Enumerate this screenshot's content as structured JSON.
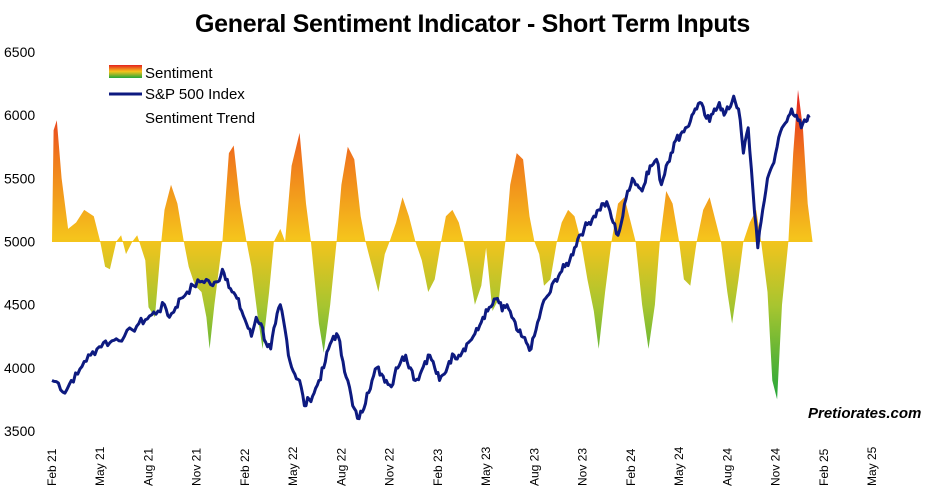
{
  "chart_data": {
    "type": "area",
    "title": "General Sentiment Indicator - Short Term Inputs",
    "xlabel": "",
    "ylabel": "",
    "ylim": [
      3500,
      6500
    ],
    "yticks": [
      "6500",
      "6000",
      "5500",
      "5000",
      "4500",
      "4000",
      "3500"
    ],
    "xticks": [
      "Feb 21",
      "May 21",
      "Aug 21",
      "Nov 21",
      "Feb 22",
      "May 22",
      "Aug 22",
      "Nov 22",
      "Feb 23",
      "May 23",
      "Aug 23",
      "Nov 23",
      "Feb 24",
      "May 24",
      "Aug 24",
      "Nov 24",
      "Feb 25",
      "May 25"
    ],
    "grid": false,
    "legend_position": "top-left",
    "baseline": 5000,
    "legend": [
      {
        "name": "Sentiment",
        "symbol": "gradient-bar"
      },
      {
        "name": "S&P 500 Index",
        "symbol": "line",
        "color": "#0d1a80"
      },
      {
        "name": "Sentiment Trend",
        "symbol": "none"
      }
    ],
    "series": [
      {
        "name": "Sentiment",
        "kind": "area-from-baseline",
        "colors": {
          "high": "#e5201f",
          "mid": "#f5c41c",
          "low": "#22a63a"
        },
        "points": [
          [
            0,
            5000
          ],
          [
            0.1,
            5880
          ],
          [
            0.3,
            5960
          ],
          [
            0.6,
            5500
          ],
          [
            1,
            5100
          ],
          [
            1.5,
            5150
          ],
          [
            2,
            5250
          ],
          [
            2.6,
            5200
          ],
          [
            3,
            5000
          ],
          [
            3.3,
            4800
          ],
          [
            3.6,
            4780
          ],
          [
            4,
            5000
          ],
          [
            4.3,
            5050
          ],
          [
            4.6,
            4900
          ],
          [
            5,
            5000
          ],
          [
            5.3,
            5050
          ],
          [
            5.8,
            4850
          ],
          [
            6,
            4480
          ],
          [
            6.4,
            4400
          ],
          [
            6.8,
            5000
          ],
          [
            7,
            5250
          ],
          [
            7.4,
            5450
          ],
          [
            7.8,
            5300
          ],
          [
            8.2,
            5000
          ],
          [
            8.5,
            4800
          ],
          [
            8.9,
            4650
          ],
          [
            9.3,
            4600
          ],
          [
            9.6,
            4400
          ],
          [
            9.8,
            4150
          ],
          [
            10.1,
            4500
          ],
          [
            10.6,
            5000
          ],
          [
            11,
            5700
          ],
          [
            11.3,
            5760
          ],
          [
            11.7,
            5300
          ],
          [
            12.1,
            5000
          ],
          [
            12.4,
            4800
          ],
          [
            12.8,
            4400
          ],
          [
            13.1,
            4150
          ],
          [
            13.5,
            4600
          ],
          [
            13.8,
            5000
          ],
          [
            14.2,
            5100
          ],
          [
            14.5,
            5000
          ],
          [
            14.9,
            5600
          ],
          [
            15.4,
            5860
          ],
          [
            15.8,
            5300
          ],
          [
            16.1,
            5000
          ],
          [
            16.6,
            4350
          ],
          [
            16.9,
            4120
          ],
          [
            17.3,
            4500
          ],
          [
            17.7,
            5000
          ],
          [
            18,
            5450
          ],
          [
            18.4,
            5750
          ],
          [
            18.8,
            5650
          ],
          [
            19.2,
            5200
          ],
          [
            19.5,
            5000
          ],
          [
            19.9,
            4800
          ],
          [
            20.3,
            4600
          ],
          [
            20.7,
            4900
          ],
          [
            21,
            5000
          ],
          [
            21.4,
            5150
          ],
          [
            21.8,
            5350
          ],
          [
            22.2,
            5200
          ],
          [
            22.6,
            5000
          ],
          [
            23,
            4850
          ],
          [
            23.4,
            4600
          ],
          [
            23.8,
            4700
          ],
          [
            24.2,
            5000
          ],
          [
            24.5,
            5200
          ],
          [
            24.9,
            5250
          ],
          [
            25.3,
            5150
          ],
          [
            25.6,
            5000
          ],
          [
            25.9,
            4800
          ],
          [
            26.3,
            4500
          ],
          [
            26.7,
            4650
          ],
          [
            27,
            4950
          ],
          [
            27.4,
            4450
          ],
          [
            27.8,
            4550
          ],
          [
            28.2,
            5000
          ],
          [
            28.5,
            5450
          ],
          [
            28.9,
            5700
          ],
          [
            29.3,
            5650
          ],
          [
            29.7,
            5200
          ],
          [
            30,
            5000
          ],
          [
            30.3,
            4900
          ],
          [
            30.6,
            4650
          ],
          [
            31,
            4700
          ],
          [
            31.4,
            5000
          ],
          [
            31.7,
            5150
          ],
          [
            32.1,
            5250
          ],
          [
            32.5,
            5200
          ],
          [
            32.9,
            5000
          ],
          [
            33.3,
            4700
          ],
          [
            33.7,
            4450
          ],
          [
            34,
            4150
          ],
          [
            34.4,
            4600
          ],
          [
            34.8,
            5000
          ],
          [
            35.2,
            5300
          ],
          [
            35.6,
            5350
          ],
          [
            36,
            5150
          ],
          [
            36.3,
            5000
          ],
          [
            36.7,
            4500
          ],
          [
            37.1,
            4150
          ],
          [
            37.5,
            4500
          ],
          [
            37.8,
            5000
          ],
          [
            38.2,
            5400
          ],
          [
            38.6,
            5300
          ],
          [
            39,
            5000
          ],
          [
            39.3,
            4700
          ],
          [
            39.7,
            4650
          ],
          [
            40.1,
            5000
          ],
          [
            40.5,
            5250
          ],
          [
            40.9,
            5350
          ],
          [
            41.3,
            5150
          ],
          [
            41.6,
            5000
          ],
          [
            42,
            4600
          ],
          [
            42.3,
            4350
          ],
          [
            42.7,
            4700
          ],
          [
            43,
            5000
          ],
          [
            43.4,
            5150
          ],
          [
            43.8,
            5250
          ],
          [
            44.1,
            5000
          ],
          [
            44.5,
            4600
          ],
          [
            44.8,
            3900
          ],
          [
            45.1,
            3750
          ],
          [
            45.4,
            4500
          ],
          [
            45.8,
            5000
          ],
          [
            46.1,
            5700
          ],
          [
            46.4,
            6200
          ],
          [
            46.7,
            5900
          ],
          [
            47,
            5300
          ],
          [
            47.3,
            5000
          ]
        ]
      },
      {
        "name": "S&P 500 Index",
        "kind": "line",
        "color": "#0d1a80",
        "points": [
          [
            0,
            3900
          ],
          [
            0.4,
            3880
          ],
          [
            0.8,
            3800
          ],
          [
            1.2,
            3900
          ],
          [
            1.6,
            3950
          ],
          [
            2,
            4050
          ],
          [
            2.4,
            4100
          ],
          [
            2.8,
            4150
          ],
          [
            3.2,
            4200
          ],
          [
            3.6,
            4200
          ],
          [
            4,
            4230
          ],
          [
            4.5,
            4250
          ],
          [
            5,
            4300
          ],
          [
            5.4,
            4350
          ],
          [
            5.8,
            4380
          ],
          [
            6.2,
            4420
          ],
          [
            6.6,
            4450
          ],
          [
            7,
            4500
          ],
          [
            7.3,
            4400
          ],
          [
            7.7,
            4480
          ],
          [
            8,
            4550
          ],
          [
            8.4,
            4600
          ],
          [
            8.8,
            4650
          ],
          [
            9.2,
            4680
          ],
          [
            9.6,
            4700
          ],
          [
            10,
            4650
          ],
          [
            10.3,
            4680
          ],
          [
            10.6,
            4780
          ],
          [
            10.9,
            4700
          ],
          [
            11.2,
            4600
          ],
          [
            11.5,
            4550
          ],
          [
            11.8,
            4450
          ],
          [
            12.1,
            4350
          ],
          [
            12.4,
            4250
          ],
          [
            12.7,
            4400
          ],
          [
            13,
            4350
          ],
          [
            13.3,
            4200
          ],
          [
            13.6,
            4150
          ],
          [
            13.9,
            4350
          ],
          [
            14.2,
            4500
          ],
          [
            14.5,
            4300
          ],
          [
            14.8,
            4050
          ],
          [
            15.1,
            3950
          ],
          [
            15.4,
            3900
          ],
          [
            15.7,
            3700
          ],
          [
            16,
            3750
          ],
          [
            16.3,
            3800
          ],
          [
            16.6,
            3900
          ],
          [
            16.9,
            4000
          ],
          [
            17.2,
            4150
          ],
          [
            17.5,
            4250
          ],
          [
            17.8,
            4250
          ],
          [
            18.1,
            4050
          ],
          [
            18.4,
            3900
          ],
          [
            18.7,
            3700
          ],
          [
            19,
            3600
          ],
          [
            19.3,
            3650
          ],
          [
            19.6,
            3800
          ],
          [
            19.9,
            3900
          ],
          [
            20.2,
            4000
          ],
          [
            20.5,
            3950
          ],
          [
            20.8,
            3900
          ],
          [
            21.1,
            3850
          ],
          [
            21.4,
            4000
          ],
          [
            21.7,
            4050
          ],
          [
            22,
            4100
          ],
          [
            22.3,
            4000
          ],
          [
            22.6,
            3900
          ],
          [
            22.9,
            3950
          ],
          [
            23.2,
            4050
          ],
          [
            23.5,
            4100
          ],
          [
            23.8,
            4000
          ],
          [
            24.1,
            3900
          ],
          [
            24.4,
            3950
          ],
          [
            24.7,
            4050
          ],
          [
            25,
            4100
          ],
          [
            25.3,
            4100
          ],
          [
            25.6,
            4150
          ],
          [
            25.9,
            4200
          ],
          [
            26.2,
            4250
          ],
          [
            26.5,
            4300
          ],
          [
            26.8,
            4400
          ],
          [
            27.1,
            4450
          ],
          [
            27.4,
            4500
          ],
          [
            27.7,
            4550
          ],
          [
            28,
            4450
          ],
          [
            28.3,
            4500
          ],
          [
            28.6,
            4400
          ],
          [
            28.9,
            4300
          ],
          [
            29.2,
            4250
          ],
          [
            29.5,
            4200
          ],
          [
            29.8,
            4150
          ],
          [
            30.1,
            4300
          ],
          [
            30.4,
            4450
          ],
          [
            30.7,
            4550
          ],
          [
            31,
            4600
          ],
          [
            31.3,
            4700
          ],
          [
            31.6,
            4750
          ],
          [
            31.9,
            4800
          ],
          [
            32.2,
            4850
          ],
          [
            32.5,
            4950
          ],
          [
            32.8,
            5050
          ],
          [
            33.1,
            5100
          ],
          [
            33.4,
            5150
          ],
          [
            33.7,
            5200
          ],
          [
            34,
            5250
          ],
          [
            34.3,
            5300
          ],
          [
            34.6,
            5280
          ],
          [
            34.9,
            5150
          ],
          [
            35.2,
            5050
          ],
          [
            35.5,
            5200
          ],
          [
            35.8,
            5400
          ],
          [
            36.1,
            5500
          ],
          [
            36.4,
            5450
          ],
          [
            36.7,
            5400
          ],
          [
            37,
            5550
          ],
          [
            37.3,
            5600
          ],
          [
            37.6,
            5650
          ],
          [
            37.9,
            5450
          ],
          [
            38.2,
            5600
          ],
          [
            38.5,
            5700
          ],
          [
            38.8,
            5800
          ],
          [
            39.1,
            5850
          ],
          [
            39.4,
            5900
          ],
          [
            39.7,
            5950
          ],
          [
            40,
            6050
          ],
          [
            40.3,
            6100
          ],
          [
            40.6,
            6000
          ],
          [
            40.9,
            5950
          ],
          [
            41.2,
            6050
          ],
          [
            41.5,
            6100
          ],
          [
            41.8,
            6000
          ],
          [
            42.1,
            6050
          ],
          [
            42.4,
            6150
          ],
          [
            42.7,
            6050
          ],
          [
            43,
            5700
          ],
          [
            43.3,
            5900
          ],
          [
            43.6,
            5400
          ],
          [
            43.9,
            4950
          ],
          [
            44.2,
            5250
          ],
          [
            44.5,
            5500
          ],
          [
            44.8,
            5600
          ],
          [
            45.1,
            5750
          ],
          [
            45.4,
            5900
          ],
          [
            45.7,
            5950
          ],
          [
            46,
            6050
          ],
          [
            46.3,
            6000
          ],
          [
            46.6,
            5900
          ],
          [
            46.9,
            5950
          ],
          [
            47.1,
            5980
          ]
        ]
      }
    ]
  },
  "watermark": "Pretiorates.com"
}
